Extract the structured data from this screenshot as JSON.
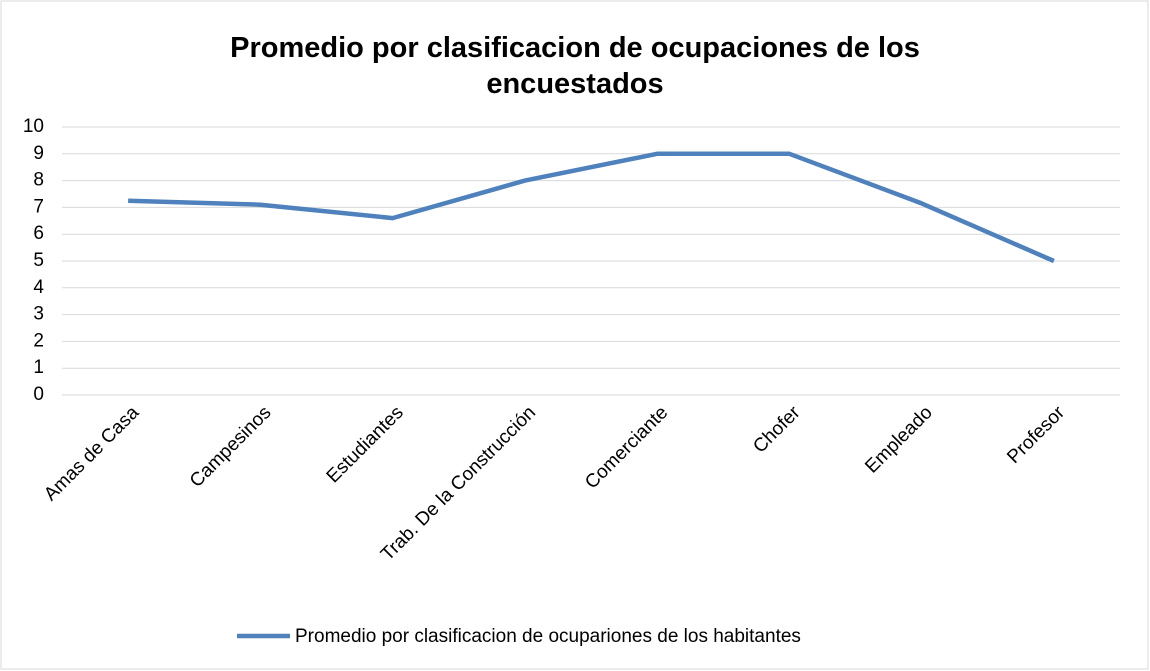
{
  "chart_data": {
    "type": "line",
    "title": "Promedio por clasificacion de ocupaciones de los encuestados",
    "categories": [
      "Amas de Casa",
      "Campesinos",
      "Estudiantes",
      "Trab. De la Construcción",
      "Comerciante",
      "Chofer",
      "Empleado",
      "Profesor"
    ],
    "series": [
      {
        "name": "Promedio por clasificacion de ocupariones de los habitantes",
        "color": "#4f81bd",
        "values": [
          7.25,
          7.1,
          6.6,
          8,
          9,
          9,
          7.15,
          5
        ]
      }
    ],
    "ylim": [
      0,
      10
    ],
    "yticks": [
      0,
      1,
      2,
      3,
      4,
      5,
      6,
      7,
      8,
      9,
      10
    ],
    "grid": true,
    "legend": "bottom"
  }
}
